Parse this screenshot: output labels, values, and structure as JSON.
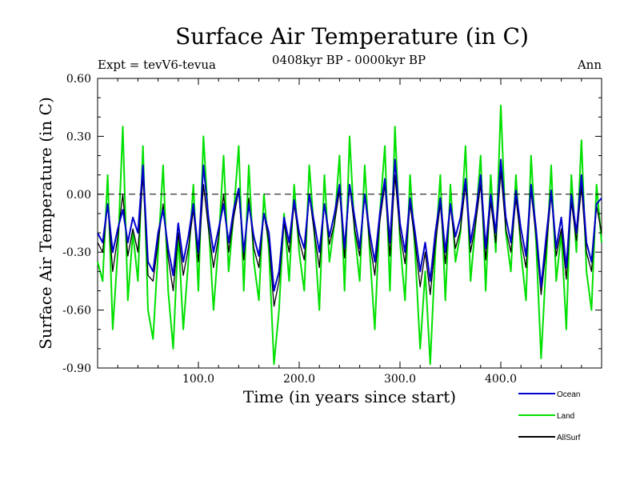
{
  "chart_data": {
    "type": "line",
    "title": "Surface Air Temperature (in C)",
    "subtitle": "0408kyr BP - 0000kyr BP",
    "left_label": "Expt = tevV6-tevua",
    "right_label": "Ann",
    "xlabel": "Time (in years since start)",
    "ylabel": "Surface Air Temperature (in C)",
    "xlim": [
      0,
      500
    ],
    "ylim": [
      -0.9,
      0.6
    ],
    "x_ticks": [
      {
        "value": 100,
        "label": "100.0"
      },
      {
        "value": 200,
        "label": "200.0"
      },
      {
        "value": 300,
        "label": "300.0"
      },
      {
        "value": 400,
        "label": "400.0"
      }
    ],
    "y_ticks": [
      {
        "value": 0.6,
        "label": "0.60"
      },
      {
        "value": 0.3,
        "label": "0.30"
      },
      {
        "value": 0.0,
        "label": "0.00"
      },
      {
        "value": -0.3,
        "label": "-0.30"
      },
      {
        "value": -0.6,
        "label": "-0.60"
      },
      {
        "value": -0.9,
        "label": "-0.90"
      }
    ],
    "reference_line": {
      "y": 0.0,
      "style": "dashed"
    },
    "legend": {
      "placement": "bottom-right",
      "entries": [
        {
          "name": "Ocean",
          "color": "#0000cc"
        },
        {
          "name": "Land",
          "color": "#00e000"
        },
        {
          "name": "AllSurf",
          "color": "#000000"
        }
      ]
    },
    "series": [
      {
        "name": "Land",
        "color": "#00e000",
        "x": [
          0,
          5,
          10,
          15,
          20,
          25,
          30,
          35,
          40,
          45,
          50,
          55,
          60,
          65,
          70,
          75,
          80,
          85,
          90,
          95,
          100,
          105,
          110,
          115,
          120,
          125,
          130,
          135,
          140,
          145,
          150,
          155,
          160,
          165,
          170,
          175,
          180,
          185,
          190,
          195,
          200,
          205,
          210,
          215,
          220,
          225,
          230,
          235,
          240,
          245,
          250,
          255,
          260,
          265,
          270,
          275,
          280,
          285,
          290,
          295,
          300,
          305,
          310,
          315,
          320,
          325,
          330,
          335,
          340,
          345,
          350,
          355,
          360,
          365,
          370,
          375,
          380,
          385,
          390,
          395,
          400,
          405,
          410,
          415,
          420,
          425,
          430,
          435,
          440,
          445,
          450,
          455,
          460,
          465,
          470,
          475,
          480,
          485,
          490,
          495,
          500
        ],
        "y": [
          -0.35,
          -0.45,
          0.1,
          -0.7,
          -0.3,
          0.35,
          -0.55,
          -0.2,
          -0.45,
          0.25,
          -0.6,
          -0.75,
          -0.3,
          0.15,
          -0.5,
          -0.8,
          -0.2,
          -0.7,
          -0.35,
          0.05,
          -0.5,
          0.3,
          -0.15,
          -0.6,
          -0.25,
          0.2,
          -0.4,
          -0.1,
          0.25,
          -0.5,
          0.15,
          -0.35,
          -0.55,
          0.0,
          -0.3,
          -0.88,
          -0.6,
          -0.1,
          -0.45,
          0.05,
          -0.3,
          -0.5,
          0.15,
          -0.2,
          -0.6,
          0.1,
          -0.35,
          -0.15,
          0.2,
          -0.5,
          0.3,
          -0.2,
          -0.45,
          0.15,
          -0.3,
          -0.7,
          -0.1,
          0.25,
          -0.5,
          0.35,
          -0.25,
          -0.55,
          0.1,
          -0.3,
          -0.8,
          -0.4,
          -0.88,
          -0.3,
          0.1,
          -0.55,
          0.05,
          -0.35,
          -0.2,
          0.25,
          -0.45,
          -0.15,
          0.2,
          -0.5,
          0.1,
          -0.3,
          0.46,
          -0.2,
          -0.4,
          0.1,
          -0.3,
          -0.55,
          0.2,
          -0.25,
          -0.85,
          -0.35,
          0.15,
          -0.45,
          -0.2,
          -0.7,
          0.1,
          -0.3,
          0.28,
          -0.4,
          -0.6,
          0.05,
          -0.25
        ]
      },
      {
        "name": "AllSurf",
        "color": "#000000",
        "x": [
          0,
          5,
          10,
          15,
          20,
          25,
          30,
          35,
          40,
          45,
          50,
          55,
          60,
          65,
          70,
          75,
          80,
          85,
          90,
          95,
          100,
          105,
          110,
          115,
          120,
          125,
          130,
          135,
          140,
          145,
          150,
          155,
          160,
          165,
          170,
          175,
          180,
          185,
          190,
          195,
          200,
          205,
          210,
          215,
          220,
          225,
          230,
          235,
          240,
          245,
          250,
          255,
          260,
          265,
          270,
          275,
          280,
          285,
          290,
          295,
          300,
          305,
          310,
          315,
          320,
          325,
          330,
          335,
          340,
          345,
          350,
          355,
          360,
          365,
          370,
          375,
          380,
          385,
          390,
          395,
          400,
          405,
          410,
          415,
          420,
          425,
          430,
          435,
          440,
          445,
          450,
          455,
          460,
          465,
          470,
          475,
          480,
          485,
          490,
          495,
          500
        ],
        "y": [
          -0.25,
          -0.3,
          -0.05,
          -0.4,
          -0.22,
          0.0,
          -0.32,
          -0.18,
          -0.3,
          0.1,
          -0.42,
          -0.45,
          -0.25,
          -0.05,
          -0.33,
          -0.5,
          -0.2,
          -0.42,
          -0.28,
          -0.08,
          -0.35,
          0.05,
          -0.18,
          -0.38,
          -0.22,
          0.0,
          -0.3,
          -0.12,
          0.02,
          -0.34,
          -0.02,
          -0.28,
          -0.38,
          -0.1,
          -0.25,
          -0.58,
          -0.45,
          -0.15,
          -0.3,
          -0.05,
          -0.24,
          -0.34,
          0.0,
          -0.2,
          -0.38,
          -0.05,
          -0.26,
          -0.15,
          0.02,
          -0.33,
          0.05,
          -0.18,
          -0.32,
          0.0,
          -0.25,
          -0.42,
          -0.14,
          0.05,
          -0.32,
          0.1,
          -0.2,
          -0.36,
          -0.05,
          -0.25,
          -0.48,
          -0.3,
          -0.52,
          -0.26,
          -0.05,
          -0.36,
          -0.06,
          -0.28,
          -0.18,
          0.05,
          -0.3,
          -0.15,
          0.05,
          -0.34,
          -0.04,
          -0.25,
          0.12,
          -0.18,
          -0.3,
          -0.02,
          -0.24,
          -0.38,
          0.02,
          -0.22,
          -0.52,
          -0.28,
          0.0,
          -0.32,
          -0.18,
          -0.44,
          -0.04,
          -0.24,
          0.04,
          -0.3,
          -0.4,
          -0.06,
          -0.2
        ]
      },
      {
        "name": "Ocean",
        "color": "#0000cc",
        "x": [
          0,
          5,
          10,
          15,
          20,
          25,
          30,
          35,
          40,
          45,
          50,
          55,
          60,
          65,
          70,
          75,
          80,
          85,
          90,
          95,
          100,
          105,
          110,
          115,
          120,
          125,
          130,
          135,
          140,
          145,
          150,
          155,
          160,
          165,
          170,
          175,
          180,
          185,
          190,
          195,
          200,
          205,
          210,
          215,
          220,
          225,
          230,
          235,
          240,
          245,
          250,
          255,
          260,
          265,
          270,
          275,
          280,
          285,
          290,
          295,
          300,
          305,
          310,
          315,
          320,
          325,
          330,
          335,
          340,
          345,
          350,
          355,
          360,
          365,
          370,
          375,
          380,
          385,
          390,
          395,
          400,
          405,
          410,
          415,
          420,
          425,
          430,
          435,
          440,
          445,
          450,
          455,
          460,
          465,
          470,
          475,
          480,
          485,
          490,
          495,
          500
        ],
        "y": [
          -0.2,
          -0.25,
          -0.05,
          -0.3,
          -0.18,
          -0.08,
          -0.25,
          -0.12,
          -0.2,
          0.15,
          -0.35,
          -0.4,
          -0.2,
          -0.08,
          -0.28,
          -0.42,
          -0.15,
          -0.35,
          -0.22,
          -0.05,
          -0.3,
          0.15,
          -0.12,
          -0.3,
          -0.18,
          -0.05,
          -0.25,
          -0.08,
          0.03,
          -0.3,
          -0.05,
          -0.22,
          -0.32,
          -0.1,
          -0.2,
          -0.5,
          -0.4,
          -0.12,
          -0.25,
          -0.03,
          -0.2,
          -0.28,
          0.0,
          -0.15,
          -0.3,
          -0.05,
          -0.22,
          -0.1,
          0.05,
          -0.28,
          0.05,
          -0.12,
          -0.28,
          0.0,
          -0.2,
          -0.35,
          -0.1,
          0.08,
          -0.25,
          0.18,
          -0.15,
          -0.3,
          -0.02,
          -0.2,
          -0.4,
          -0.25,
          -0.45,
          -0.2,
          -0.02,
          -0.3,
          -0.05,
          -0.22,
          -0.12,
          0.08,
          -0.25,
          -0.1,
          0.1,
          -0.28,
          0.0,
          -0.2,
          0.18,
          -0.12,
          -0.25,
          0.02,
          -0.18,
          -0.32,
          0.05,
          -0.18,
          -0.48,
          -0.22,
          0.02,
          -0.28,
          -0.12,
          -0.38,
          0.0,
          -0.2,
          0.1,
          -0.25,
          -0.35,
          -0.05,
          -0.02
        ]
      }
    ]
  }
}
